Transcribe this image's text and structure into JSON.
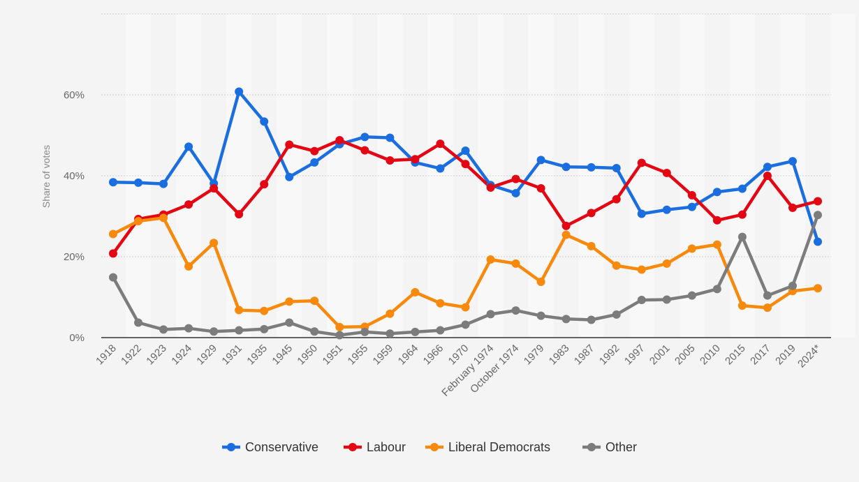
{
  "chart_data": {
    "type": "line",
    "title": "",
    "xlabel": "",
    "ylabel": "Share of votes",
    "ylim": [
      0,
      80
    ],
    "yticks": [
      0,
      20,
      40,
      60
    ],
    "ytick_labels": [
      "0%",
      "20%",
      "40%",
      "60%"
    ],
    "grid": true,
    "legend_position": "bottom-center",
    "categories": [
      "1918",
      "1922",
      "1923",
      "1924",
      "1929",
      "1931",
      "1935",
      "1945",
      "1950",
      "1951",
      "1955",
      "1959",
      "1964",
      "1966",
      "1970",
      "February 1974",
      "October 1974",
      "1979",
      "1983",
      "1987",
      "1992",
      "1997",
      "2001",
      "2005",
      "2010",
      "2015",
      "2017",
      "2019",
      "2024*"
    ],
    "series": [
      {
        "name": "Conservative",
        "color": "#1a6ee0",
        "values": [
          38.4,
          38.3,
          38.0,
          47.2,
          38.1,
          60.8,
          53.4,
          39.7,
          43.3,
          47.8,
          49.6,
          49.4,
          43.3,
          41.8,
          46.2,
          37.7,
          35.7,
          43.9,
          42.2,
          42.1,
          41.9,
          30.6,
          31.6,
          32.3,
          36.0,
          36.8,
          42.2,
          43.6,
          23.7
        ]
      },
      {
        "name": "Labour",
        "color": "#e30613",
        "values": [
          20.8,
          29.3,
          30.4,
          32.9,
          36.9,
          30.5,
          37.9,
          47.7,
          46.1,
          48.8,
          46.3,
          43.8,
          44.1,
          47.9,
          42.9,
          37.1,
          39.2,
          36.9,
          27.6,
          30.8,
          34.2,
          43.2,
          40.7,
          35.2,
          29.0,
          30.4,
          40.0,
          32.1,
          33.7
        ]
      },
      {
        "name": "Liberal Democrats",
        "color": "#f7890c",
        "values": [
          25.6,
          28.8,
          29.6,
          17.6,
          23.4,
          6.8,
          6.6,
          8.9,
          9.1,
          2.6,
          2.7,
          5.9,
          11.2,
          8.5,
          7.5,
          19.3,
          18.3,
          13.8,
          25.4,
          22.6,
          17.8,
          16.8,
          18.3,
          22.0,
          23.0,
          7.9,
          7.4,
          11.5,
          12.2
        ]
      },
      {
        "name": "Other",
        "color": "#7c7c7c",
        "values": [
          14.9,
          3.7,
          2.0,
          2.3,
          1.5,
          1.8,
          2.1,
          3.7,
          1.5,
          0.6,
          1.4,
          1.0,
          1.4,
          1.8,
          3.2,
          5.8,
          6.7,
          5.4,
          4.6,
          4.4,
          5.7,
          9.3,
          9.4,
          10.4,
          12.0,
          24.9,
          10.4,
          12.8,
          30.3
        ]
      }
    ]
  }
}
